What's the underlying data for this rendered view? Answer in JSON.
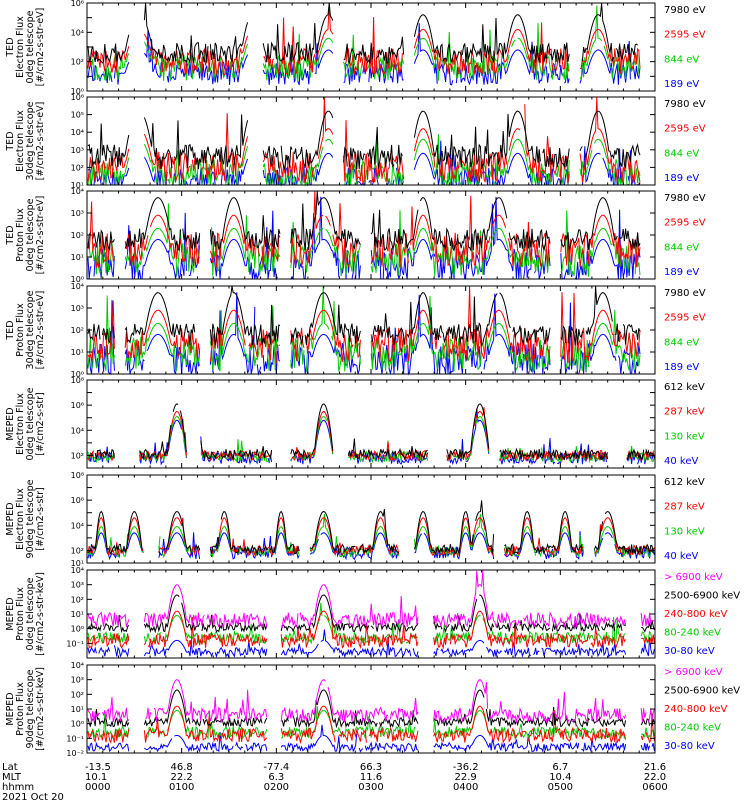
{
  "panels": [
    {
      "id": "ted-e-0",
      "ylabel": [
        "TED",
        "Electron Flux",
        "0deg telescope",
        "[#/cm2-s-str-eV]"
      ],
      "ymin_exp": 0,
      "ymax_exp": 6,
      "tick_labels": [
        "10⁰",
        "10²",
        "10⁴",
        "10⁶"
      ],
      "tick_exps": [
        0,
        2,
        4,
        6
      ],
      "channels": [
        {
          "label": "7980 eV",
          "color": "#000000"
        },
        {
          "label": "2595 eV",
          "color": "#ff0000"
        },
        {
          "label": "844 eV",
          "color": "#00cc00"
        },
        {
          "label": "189 eV",
          "color": "#0000ff"
        }
      ],
      "shape": "ted-electron"
    },
    {
      "id": "ted-e-30",
      "ylabel": [
        "TED",
        "Electron Flux",
        "30deg telescope",
        "[#/cm2-s-str-eV]"
      ],
      "ymin_exp": 1,
      "ymax_exp": 6,
      "tick_labels": [
        "10¹",
        "10²",
        "10³",
        "10⁴",
        "10⁵",
        "10⁶"
      ],
      "tick_exps": [
        1,
        2,
        3,
        4,
        5,
        6
      ],
      "channels": [
        {
          "label": "7980 eV",
          "color": "#000000"
        },
        {
          "label": "2595 eV",
          "color": "#ff0000"
        },
        {
          "label": "844 eV",
          "color": "#00cc00"
        },
        {
          "label": "189 eV",
          "color": "#0000ff"
        }
      ],
      "shape": "ted-electron"
    },
    {
      "id": "ted-p-0",
      "ylabel": [
        "TED",
        "Proton Flux",
        "0deg telescope",
        "[#/cm2-s-str-eV]"
      ],
      "ymin_exp": 0,
      "ymax_exp": 4,
      "tick_labels": [
        "10⁰",
        "10¹",
        "10²",
        "10³",
        "10⁴"
      ],
      "tick_exps": [
        0,
        1,
        2,
        3,
        4
      ],
      "channels": [
        {
          "label": "7980 eV",
          "color": "#000000"
        },
        {
          "label": "2595 eV",
          "color": "#ff0000"
        },
        {
          "label": "844 eV",
          "color": "#00cc00"
        },
        {
          "label": "189 eV",
          "color": "#0000ff"
        }
      ],
      "shape": "ted-proton"
    },
    {
      "id": "ted-p-30",
      "ylabel": [
        "TED",
        "Proton Flux",
        "30deg telescope",
        "[#/cm2-s-str-eV]"
      ],
      "ymin_exp": 0,
      "ymax_exp": 4,
      "tick_labels": [
        "10⁰",
        "10¹",
        "10²",
        "10³",
        "10⁴"
      ],
      "tick_exps": [
        0,
        1,
        2,
        3,
        4
      ],
      "channels": [
        {
          "label": "7980 eV",
          "color": "#000000"
        },
        {
          "label": "2595 eV",
          "color": "#ff0000"
        },
        {
          "label": "844 eV",
          "color": "#00cc00"
        },
        {
          "label": "189 eV",
          "color": "#0000ff"
        }
      ],
      "shape": "ted-proton"
    },
    {
      "id": "meped-e-0",
      "ylabel": [
        "MEPED",
        "Electron Flux",
        "0deg telescope",
        "[#/cm2-s-str]"
      ],
      "ymin_exp": 1,
      "ymax_exp": 8,
      "tick_labels": [
        "10²",
        "10⁴",
        "10⁶",
        "10⁸"
      ],
      "tick_exps": [
        2,
        4,
        6,
        8
      ],
      "channels": [
        {
          "label": "612 keV",
          "color": "#000000"
        },
        {
          "label": "287 keV",
          "color": "#ff0000"
        },
        {
          "label": "130 keV",
          "color": "#00cc00"
        },
        {
          "label": "40 keV",
          "color": "#0000ff"
        }
      ],
      "shape": "meped-e0"
    },
    {
      "id": "meped-e-90",
      "ylabel": [
        "MEPED",
        "Electron Flux",
        "90deg telescope",
        "[#/cm2-s-str]"
      ],
      "ymin_exp": 1,
      "ymax_exp": 8,
      "tick_labels": [
        "10¹",
        "10²",
        "10⁴",
        "10⁶",
        "10⁸"
      ],
      "tick_exps": [
        1,
        2,
        4,
        6,
        8
      ],
      "channels": [
        {
          "label": "612 keV",
          "color": "#000000"
        },
        {
          "label": "287 keV",
          "color": "#ff0000"
        },
        {
          "label": "130 keV",
          "color": "#00cc00"
        },
        {
          "label": "40 keV",
          "color": "#0000ff"
        }
      ],
      "shape": "meped-e90"
    },
    {
      "id": "meped-p-0",
      "ylabel": [
        "MEPED",
        "Proton Flux",
        "0deg telescope",
        "[#/cm2-s-str-keV]"
      ],
      "ymin_exp": -2,
      "ymax_exp": 4,
      "tick_labels": [
        "10⁻¹",
        "10⁰",
        "10¹",
        "10²",
        "10³",
        "10⁴"
      ],
      "tick_exps": [
        -1,
        0,
        1,
        2,
        3,
        4
      ],
      "channels": [
        {
          "label": "> 6900 keV",
          "color": "#ff00ff"
        },
        {
          "label": "2500-6900 keV",
          "color": "#000000"
        },
        {
          "label": "240-800 keV",
          "color": "#ff0000"
        },
        {
          "label": "80-240 keV",
          "color": "#00cc00"
        },
        {
          "label": "30-80 keV",
          "color": "#0000ff"
        }
      ],
      "shape": "meped-p"
    },
    {
      "id": "meped-p-90",
      "ylabel": [
        "MEPED",
        "Proton Flux",
        "90deg telescope",
        "[#/cm2-s-str-keV]"
      ],
      "ymin_exp": -2,
      "ymax_exp": 4,
      "tick_labels": [
        "10⁻²",
        "10⁻¹",
        "10⁰",
        "10¹",
        "10²",
        "10³",
        "10⁴"
      ],
      "tick_exps": [
        -2,
        -1,
        0,
        1,
        2,
        3,
        4
      ],
      "channels": [
        {
          "label": "> 6900 keV",
          "color": "#ff00ff"
        },
        {
          "label": "2500-6900 keV",
          "color": "#000000"
        },
        {
          "label": "240-800 keV",
          "color": "#ff0000"
        },
        {
          "label": "80-240 keV",
          "color": "#00cc00"
        },
        {
          "label": "30-80 keV",
          "color": "#0000ff"
        }
      ],
      "shape": "meped-p"
    }
  ],
  "footer": {
    "row_labels": [
      "Lat",
      "MLT",
      "hhmm",
      "2021 Oct 20"
    ],
    "columns": [
      {
        "lat": "-13.5",
        "mlt": "10.1",
        "hhmm": "0000"
      },
      {
        "lat": "46.8",
        "mlt": "22.2",
        "hhmm": "0100"
      },
      {
        "lat": "-77.4",
        "mlt": "6.3",
        "hhmm": "0200"
      },
      {
        "lat": "66.3",
        "mlt": "11.6",
        "hhmm": "0300"
      },
      {
        "lat": "-36.2",
        "mlt": "22.9",
        "hhmm": "0400"
      },
      {
        "lat": "6.7",
        "mlt": "10.4",
        "hhmm": "0500"
      },
      {
        "lat": "21.6",
        "mlt": "22.0",
        "hhmm": "0600"
      }
    ]
  },
  "chart_data": {
    "type": "line",
    "x_unit": "hours UT",
    "x_range": [
      0,
      6
    ],
    "y_scale": "log",
    "x_ticks_hhmm": [
      "0000",
      "0100",
      "0200",
      "0300",
      "0400",
      "0500",
      "0600"
    ],
    "radiation_belt_pass_hours": [
      1.0,
      2.5,
      4.15,
      5.5
    ],
    "grid": false
  }
}
